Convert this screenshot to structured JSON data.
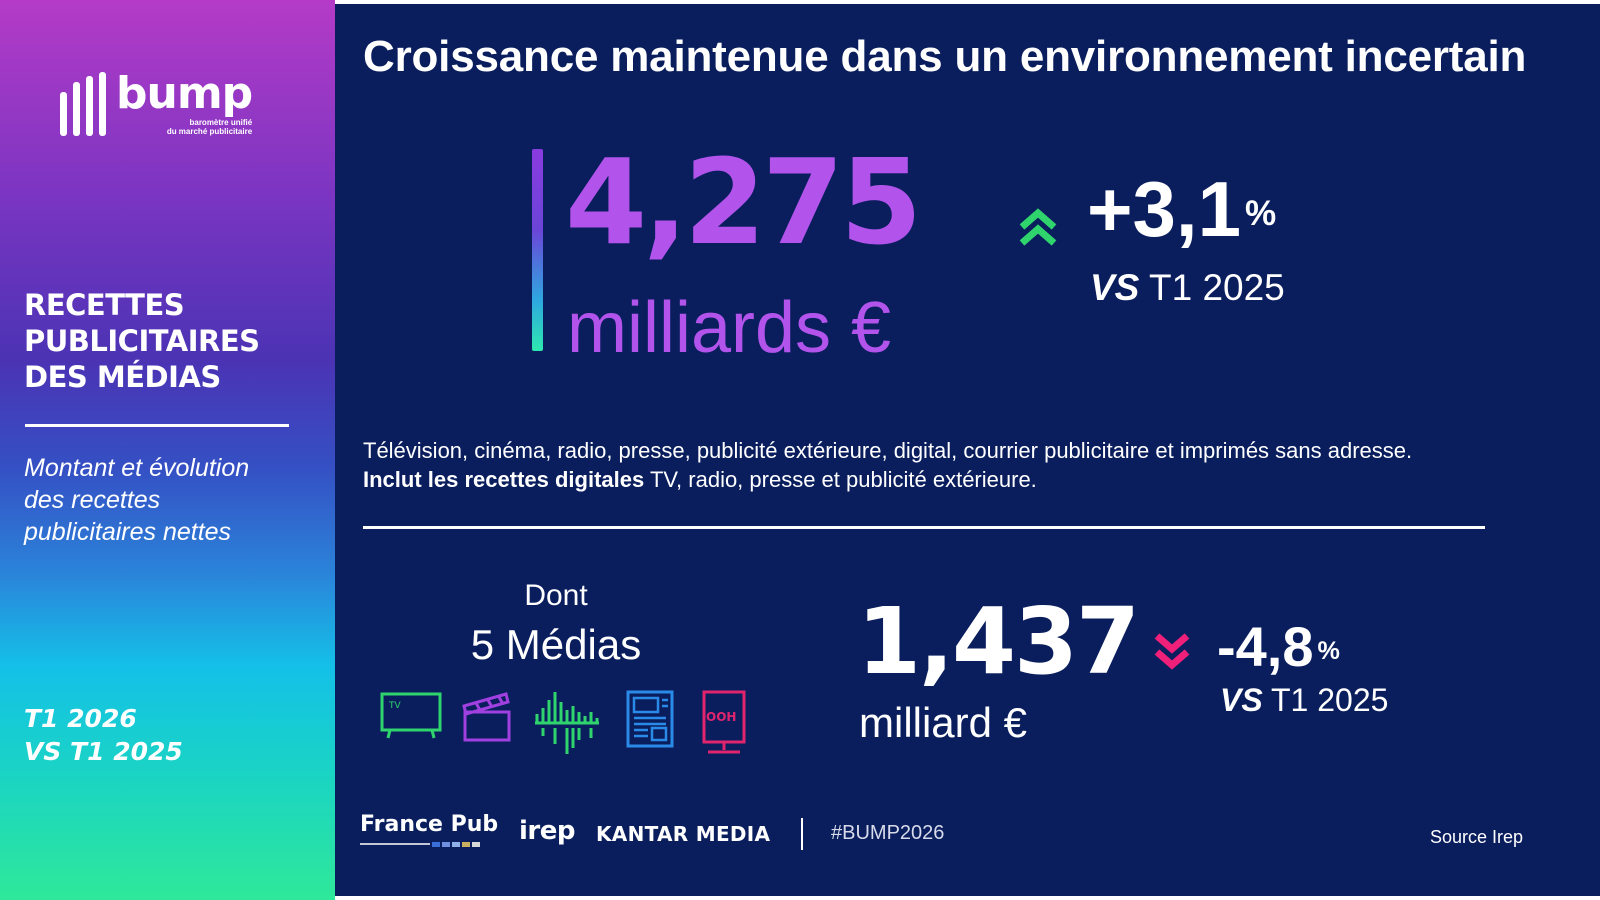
{
  "sidebar": {
    "logo_word": "bump",
    "logo_sub_1": "baromètre unifié",
    "logo_sub_2": "du marché publicitaire",
    "title_lines": [
      "RECETTES",
      "PUBLICITAIRES",
      "DES MÉDIAS"
    ],
    "description_lines": [
      "Montant et évolution",
      "des recettes",
      "publicitaires nettes"
    ],
    "period_lines": [
      "T1 2026",
      "VS T1 2025"
    ]
  },
  "main": {
    "title": "Croissance maintenue dans un environnement incertain",
    "total": {
      "value": "4,275",
      "unit": "milliards €",
      "variation": "+3,1",
      "variation_unit": "%",
      "vs_prefix": "VS",
      "vs_period": "T1 2025",
      "trend": "up",
      "trend_color": "#2fd46c"
    },
    "scope": {
      "line1": "Télévision, cinéma, radio, presse, publicité extérieure, digital, courrier publicitaire et imprimés sans adresse.",
      "line2_bold": "Inclut les recettes digitales",
      "line2_rest": " TV, radio, presse et publicité extérieure."
    },
    "five_media": {
      "label_top": "Dont",
      "label_main": "5 Médias",
      "icons": [
        {
          "name": "tv-icon",
          "label": "TV",
          "color": "#2fd46c"
        },
        {
          "name": "clapperboard-icon",
          "color": "#a040e0"
        },
        {
          "name": "radio-wave-icon",
          "color": "#2fd46c"
        },
        {
          "name": "newspaper-icon",
          "color": "#2a8ae8"
        },
        {
          "name": "ooh-billboard-icon",
          "label": "OOH",
          "color": "#e0246e"
        }
      ],
      "value": "1,437",
      "unit": "milliard €",
      "variation": "-4,8",
      "variation_unit": "%",
      "vs_prefix": "VS",
      "vs_period": "T1 2025",
      "trend": "down",
      "trend_color": "#f0207a"
    }
  },
  "footer": {
    "france_pub": "France Pub",
    "irep": "irep",
    "kantar": "KANTAR MEDIA",
    "hashtag": "#BUMP2026",
    "source": "Source Irep"
  },
  "colors": {
    "main_bg": "#0a1e5e",
    "accent_purple": "#b254ec"
  }
}
